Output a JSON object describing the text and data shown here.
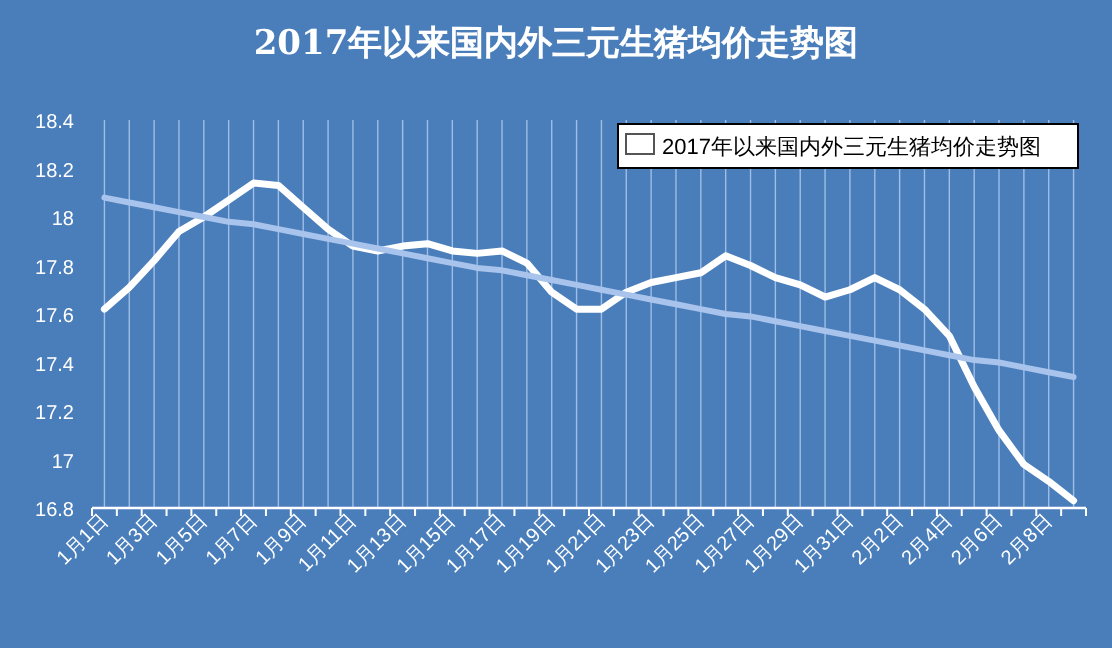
{
  "chart_data": {
    "type": "line",
    "title": "2017年以来国内外三元生猪均价走势图",
    "categories": [
      "1月1日",
      null,
      "1月3日",
      null,
      "1月5日",
      null,
      "1月7日",
      null,
      "1月9日",
      null,
      "1月11日",
      null,
      "1月13日",
      null,
      "1月15日",
      null,
      "1月17日",
      null,
      "1月19日",
      null,
      "1月21日",
      null,
      "1月23日",
      null,
      "1月25日",
      null,
      "1月27日",
      null,
      "1月29日",
      null,
      "1月31日",
      null,
      "2月2日",
      null,
      "2月4日",
      null,
      "2月6日",
      null,
      "2月8日",
      null
    ],
    "series": [
      {
        "name": "2017年以来国内外三元生猪均价走势图",
        "color": "#ffffff",
        "values": [
          17.62,
          17.71,
          17.82,
          17.94,
          18.0,
          18.07,
          18.14,
          18.13,
          18.04,
          17.95,
          17.88,
          17.86,
          17.88,
          17.89,
          17.86,
          17.85,
          17.86,
          17.81,
          17.69,
          17.62,
          17.62,
          17.69,
          17.73,
          17.75,
          17.77,
          17.84,
          17.8,
          17.75,
          17.72,
          17.67,
          17.7,
          17.75,
          17.7,
          17.62,
          17.51,
          17.3,
          17.12,
          16.98,
          16.91,
          16.83
        ]
      },
      {
        "color": "#a9c4ec",
        "values": [
          18.08,
          18.06,
          18.04,
          18.02,
          18.0,
          17.98,
          17.97,
          17.95,
          17.93,
          17.91,
          17.89,
          17.87,
          17.85,
          17.83,
          17.81,
          17.79,
          17.78,
          17.76,
          17.74,
          17.72,
          17.7,
          17.68,
          17.66,
          17.64,
          17.62,
          17.6,
          17.59,
          17.57,
          17.55,
          17.53,
          17.51,
          17.49,
          17.47,
          17.45,
          17.43,
          17.41,
          17.4,
          17.38,
          17.36,
          17.34
        ]
      }
    ],
    "ylim": [
      16.8,
      18.4
    ],
    "yticks": [
      16.8,
      17,
      17.2,
      17.4,
      17.6,
      17.8,
      18,
      18.2,
      18.4
    ],
    "legend": "top right",
    "grid": "x",
    "marker": "none",
    "line_style": "solid"
  }
}
